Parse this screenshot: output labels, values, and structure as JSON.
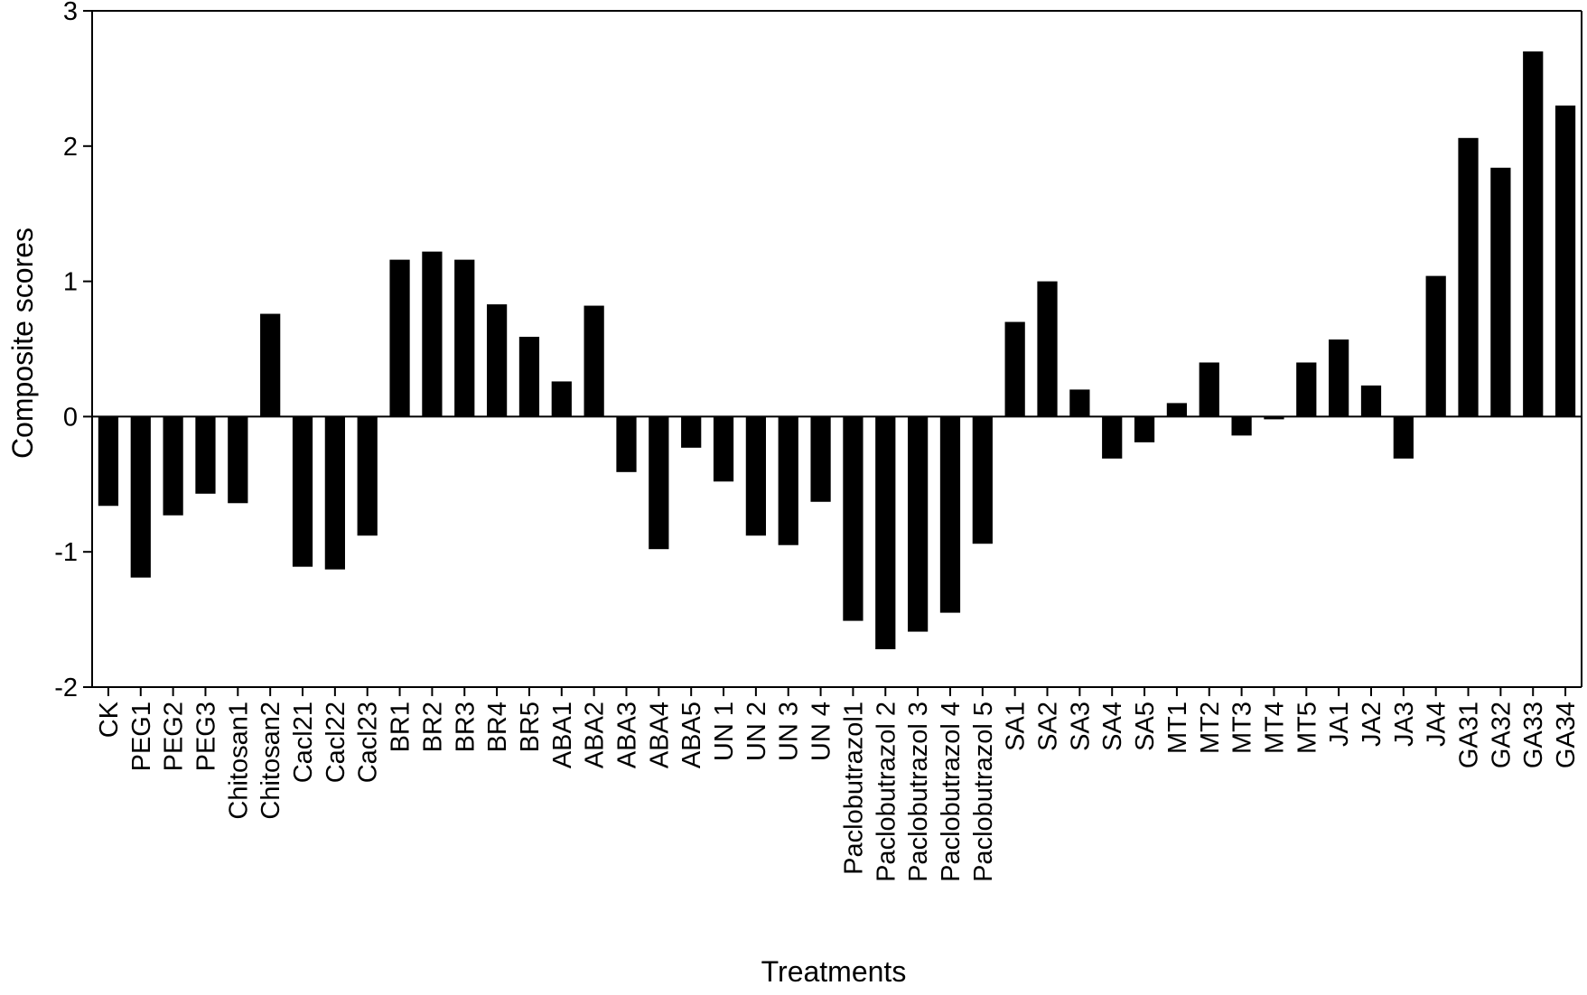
{
  "chart_data": {
    "type": "bar",
    "title": "",
    "xlabel": "Treatments",
    "ylabel": "Composite scores",
    "ylim": [
      -2,
      3
    ],
    "yticks": [
      -2,
      -1,
      0,
      1,
      2,
      3
    ],
    "grid": false,
    "legend": "none",
    "bar_color": "#000000",
    "categories": [
      "CK",
      "PEG1",
      "PEG2",
      "PEG3",
      "Chitosan1",
      "Chitosan2",
      "Cacl21",
      "Cacl22",
      "Cacl23",
      "BR1",
      "BR2",
      "BR3",
      "BR4",
      "BR5",
      "ABA1",
      "ABA2",
      "ABA3",
      "ABA4",
      "ABA5",
      "UN 1",
      "UN 2",
      "UN 3",
      "UN 4",
      "Paclobutrazol1",
      "Paclobutrazol 2",
      "Paclobutrazol 3",
      "Paclobutrazol 4",
      "Paclobutrazol 5",
      "SA1",
      "SA2",
      "SA3",
      "SA4",
      "SA5",
      "MT1",
      "MT2",
      "MT3",
      "MT4",
      "MT5",
      "JA1",
      "JA2",
      "JA3",
      "JA4",
      "GA31",
      "GA32",
      "GA33",
      "GA34"
    ],
    "values": [
      -0.66,
      -1.19,
      -0.73,
      -0.57,
      -0.64,
      0.76,
      -1.11,
      -1.13,
      -0.88,
      1.16,
      1.22,
      1.16,
      0.83,
      0.59,
      0.26,
      0.82,
      -0.41,
      -0.98,
      -0.23,
      -0.48,
      -0.88,
      -0.95,
      -0.63,
      -1.51,
      -1.72,
      -1.59,
      -1.45,
      -0.94,
      0.7,
      1.0,
      0.2,
      -0.31,
      -0.19,
      0.1,
      0.4,
      -0.14,
      -0.02,
      0.4,
      0.57,
      0.23,
      -0.31,
      1.04,
      2.06,
      1.84,
      2.7,
      2.3
    ]
  }
}
